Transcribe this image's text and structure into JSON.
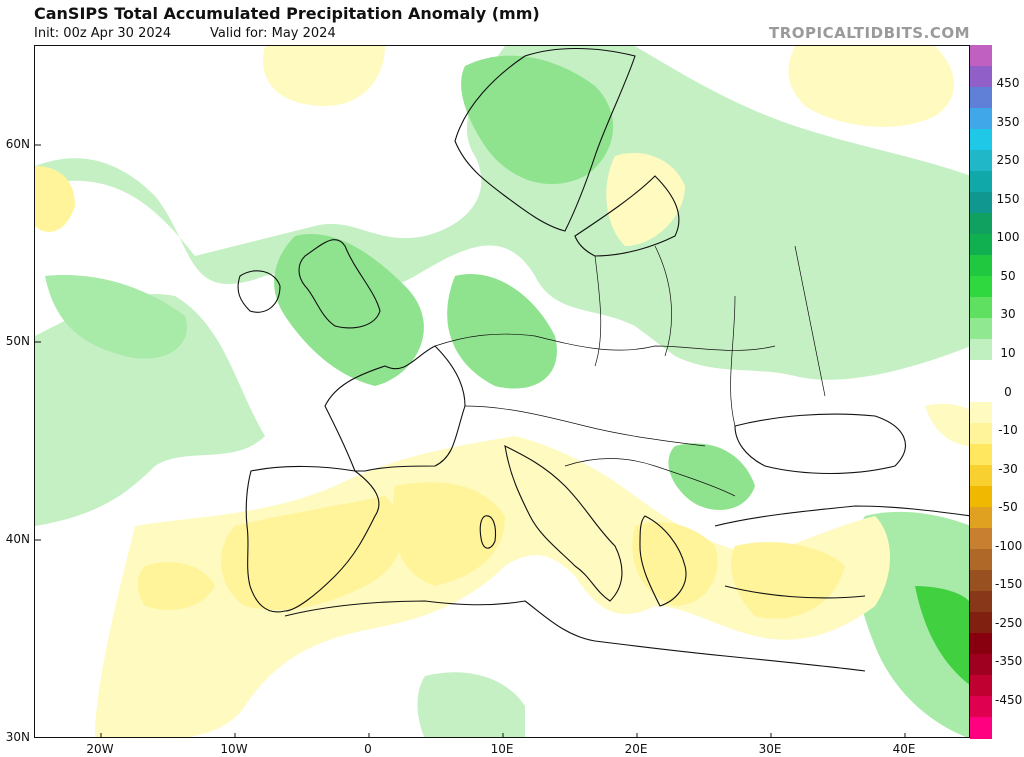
{
  "header": {
    "title": "CanSIPS Total Accumulated Precipitation Anomaly (mm)",
    "init": "Init: 00z Apr 30 2024",
    "valid": "Valid for: May 2024",
    "brand": "TROPICALTIDBITS.COM"
  },
  "map": {
    "lat_labels": [
      "60N",
      "50N",
      "40N",
      "30N"
    ],
    "lon_labels": [
      "20W",
      "10W",
      "0",
      "10E",
      "20E",
      "30E",
      "40E"
    ],
    "extent": {
      "lon_min": -25,
      "lon_max": 45,
      "lat_min": 30,
      "lat_max": 65
    }
  },
  "legend": {
    "labels": [
      "450",
      "350",
      "250",
      "150",
      "100",
      "50",
      "30",
      "10",
      "0",
      "-10",
      "-30",
      "-50",
      "-100",
      "-150",
      "-250",
      "-350",
      "-450"
    ],
    "colors": [
      "#c060c0",
      "#9060c8",
      "#6080d8",
      "#40a8e8",
      "#20c8e8",
      "#20b8c8",
      "#10a8a8",
      "#109890",
      "#10a060",
      "#10b050",
      "#20c840",
      "#30d840",
      "#60e060",
      "#90e890",
      "#c0f0c0",
      "#ffffff",
      "#ffffff",
      "#fffac0",
      "#fff49a",
      "#ffe860",
      "#f8d030",
      "#f0b800",
      "#e0a020",
      "#c88030",
      "#b06828",
      "#985020",
      "#883818",
      "#802010",
      "#880010",
      "#a00020",
      "#c00030",
      "#e00050",
      "#ff0080"
    ]
  }
}
